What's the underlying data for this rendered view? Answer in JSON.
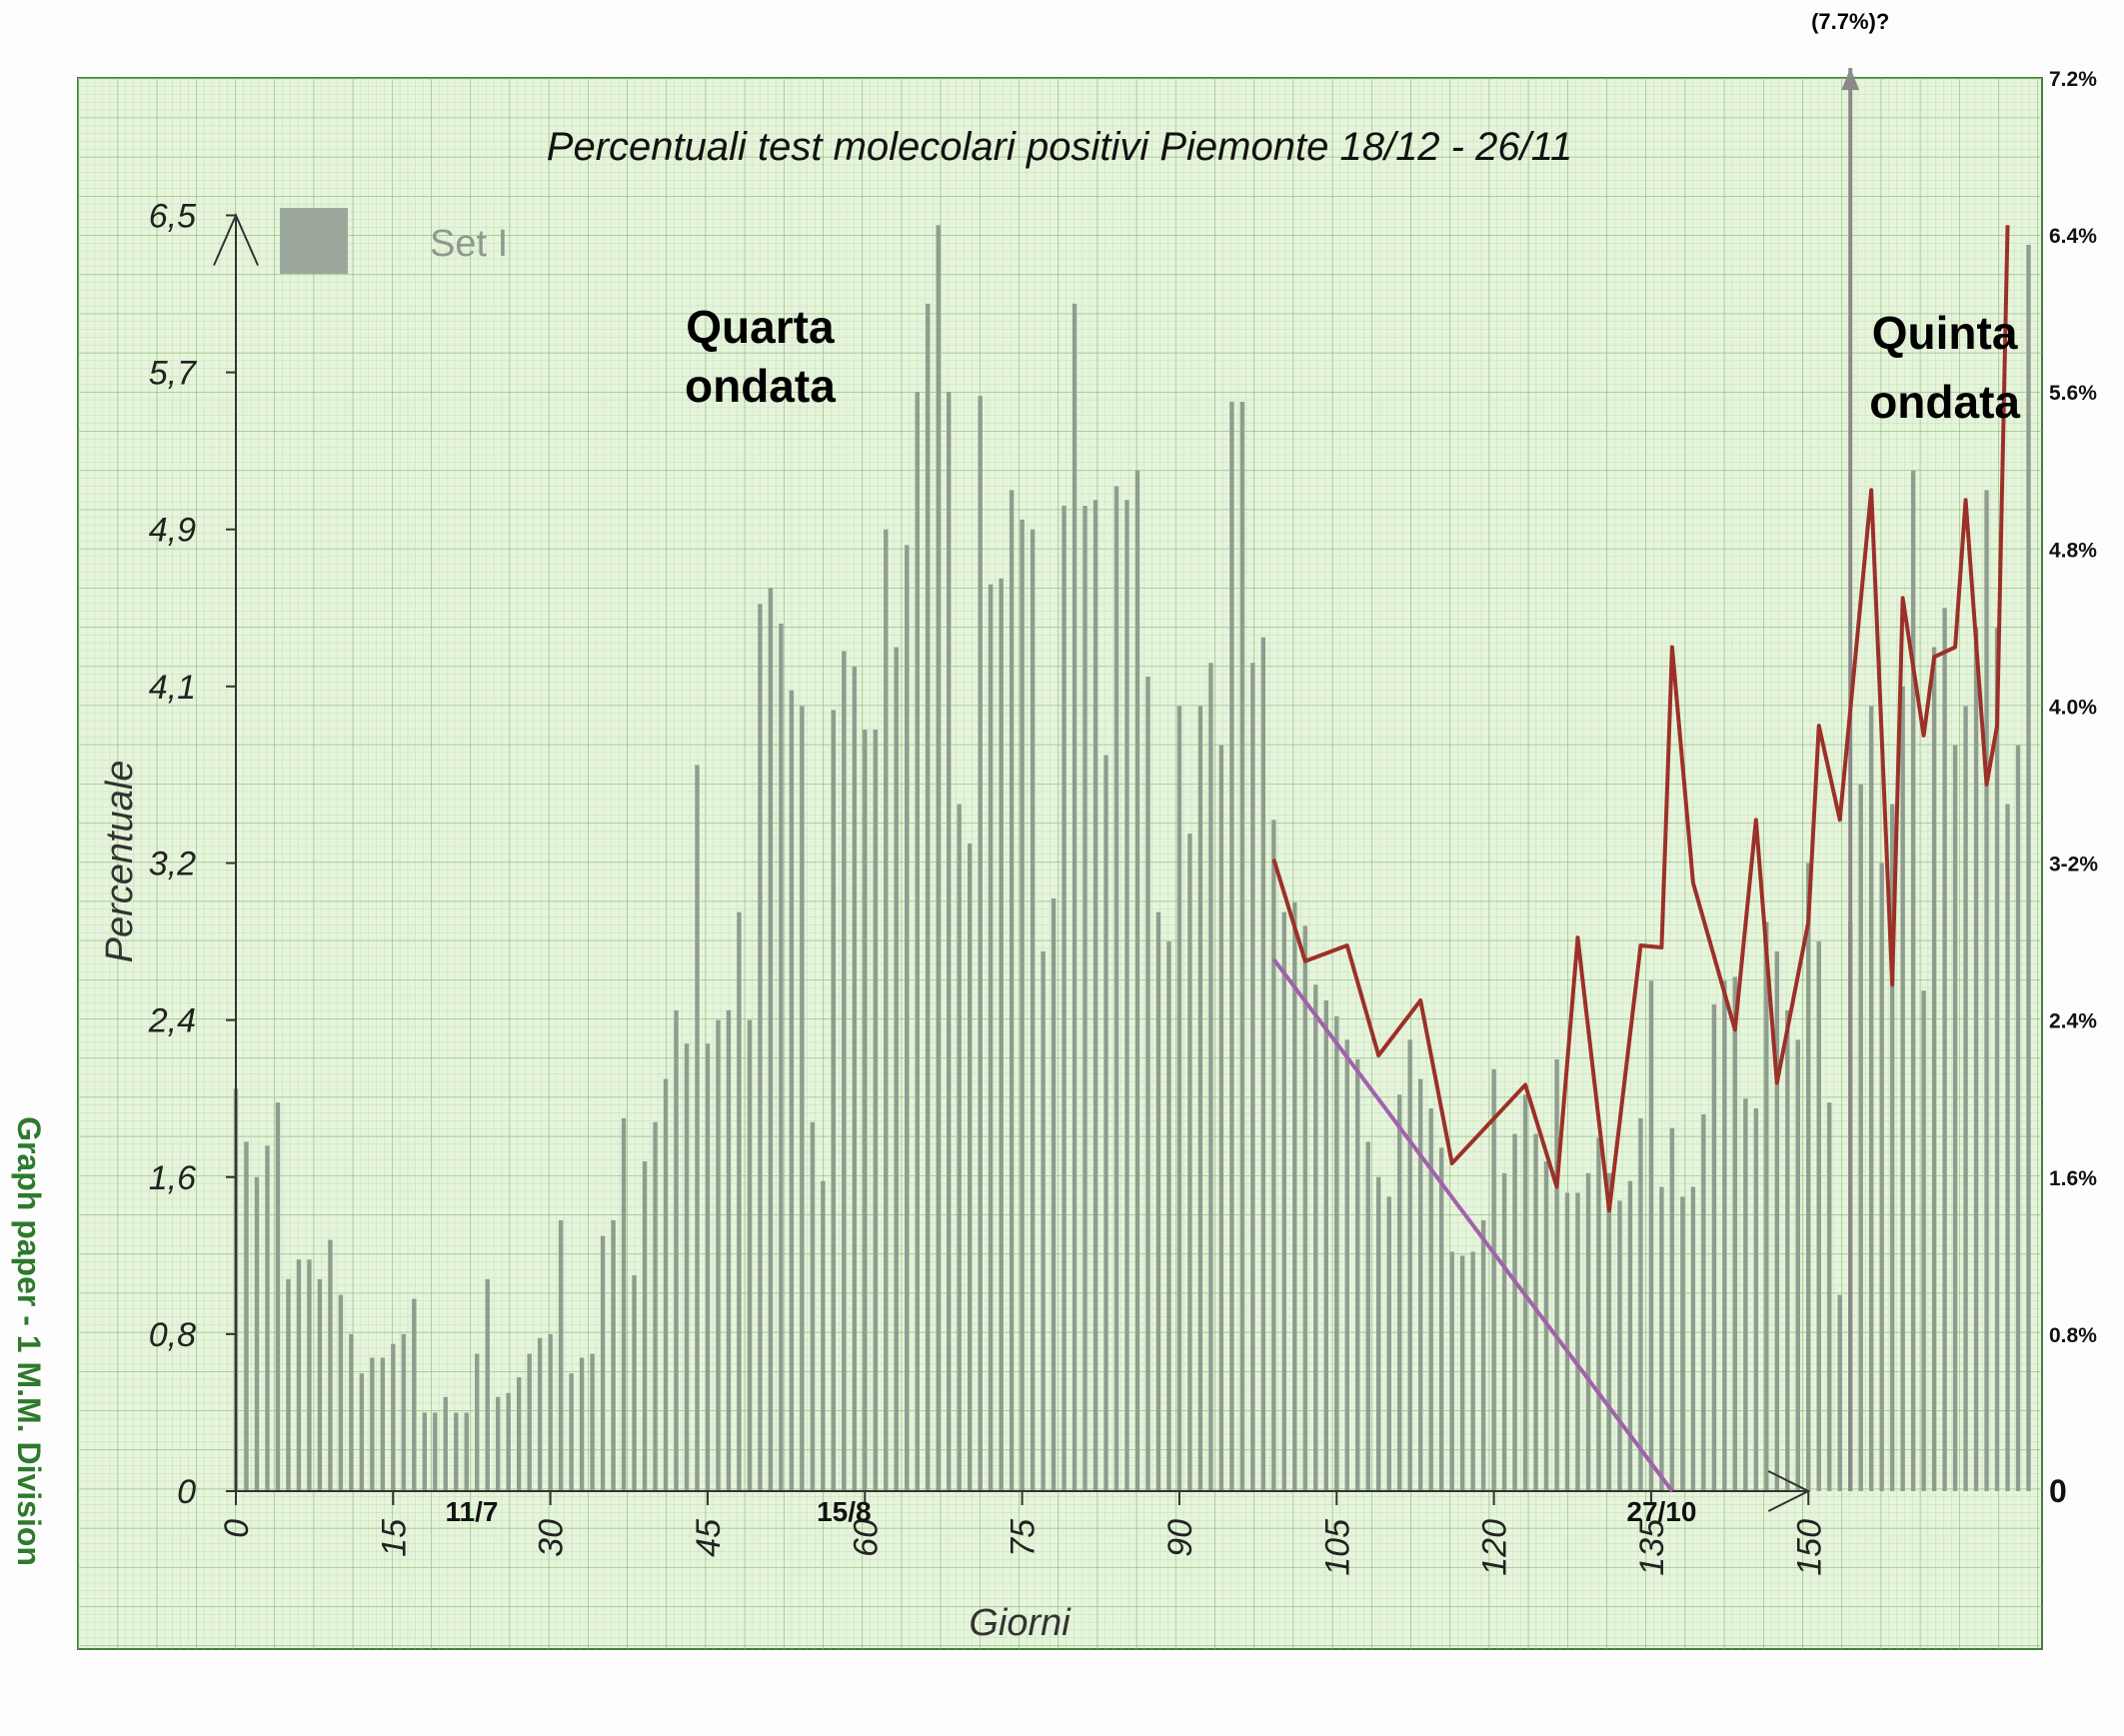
{
  "chart_data": {
    "type": "bar",
    "title": "Percentuali test molecolari positivi Piemonte 18/12 - 26/11",
    "xlabel": "Giorni",
    "ylabel": "Percentuale",
    "legend": {
      "label": "Set I",
      "position": "top-left"
    },
    "side_label": "Graph paper - 1 M.M. Division",
    "grid": true,
    "xlim": [
      0,
      172
    ],
    "ylim": [
      0,
      7.2
    ],
    "x_ticks": [
      0,
      15,
      30,
      45,
      60,
      75,
      90,
      105,
      120,
      135,
      150
    ],
    "x_tick_labels": [
      "0",
      "15",
      "30",
      "45",
      "60",
      "75",
      "90",
      "105",
      "120",
      "135",
      "150"
    ],
    "y_ticks": [
      0,
      0.8,
      1.6,
      2.4,
      3.2,
      4.1,
      4.9,
      5.7,
      6.5
    ],
    "y_tick_labels": [
      "0",
      "0,8",
      "1,6",
      "2,4",
      "3,2",
      "4,1",
      "4,9",
      "5,7",
      "6,5"
    ],
    "right_ticks": [
      0,
      0.8,
      1.6,
      2.4,
      3.2,
      4.0,
      4.8,
      5.6,
      6.4,
      7.2
    ],
    "right_tick_labels": [
      "0",
      "0.8%",
      "1.6%",
      "2.4%",
      "3-2%",
      "4.0%",
      "4.8%",
      "5.6%",
      "6.4%",
      "7.2%"
    ],
    "date_markers": [
      {
        "x": 22.5,
        "label": "11/7"
      },
      {
        "x": 58,
        "label": "15/8"
      },
      {
        "x": 136,
        "label": "27/10"
      }
    ],
    "annotations": [
      {
        "text": "Quarta",
        "x": 50,
        "y": 5.85
      },
      {
        "text": "ondata",
        "x": 50,
        "y": 5.55
      },
      {
        "text": "Quinta",
        "x": 163,
        "y": 5.82
      },
      {
        "text": "ondata",
        "x": 163,
        "y": 5.47
      },
      {
        "text": "(7.7%)?",
        "x": 154,
        "y": 7.45
      }
    ],
    "series": [
      {
        "values": [
          2.05,
          1.78,
          1.6,
          1.76,
          1.98,
          1.08,
          1.18,
          1.18,
          1.08,
          1.28,
          1.0,
          0.8,
          0.6,
          0.68,
          0.68,
          0.75,
          0.8,
          0.98,
          0.4,
          0.4,
          0.48,
          0.4,
          0.4,
          0.7,
          1.08,
          0.48,
          0.5,
          0.58,
          0.7,
          0.78,
          0.8,
          1.38,
          0.6,
          0.68,
          0.7,
          1.3,
          1.38,
          1.9,
          1.1,
          1.68,
          1.88,
          2.1,
          2.45,
          2.28,
          3.7,
          2.28,
          2.4,
          2.45,
          2.95,
          2.4,
          4.52,
          4.6,
          4.42,
          4.08,
          4.0,
          1.88,
          1.58,
          3.98,
          4.28,
          4.2,
          3.88,
          3.88,
          4.9,
          4.3,
          4.82,
          5.6,
          6.05,
          6.45,
          5.6,
          3.5,
          3.3,
          5.58,
          4.62,
          4.65,
          5.1,
          4.95,
          4.9,
          2.75,
          3.02,
          5.02,
          6.05,
          5.02,
          5.05,
          3.75,
          5.12,
          5.05,
          5.2,
          4.15,
          2.95,
          2.8,
          4.0,
          3.35,
          4.0,
          4.22,
          3.8,
          5.55,
          5.55,
          4.22,
          4.35,
          3.42,
          2.95,
          3.0,
          2.88,
          2.58,
          2.5,
          2.42,
          2.3,
          2.2,
          1.78,
          1.6,
          1.5,
          2.02,
          2.3,
          2.1,
          1.95,
          1.75,
          1.22,
          1.2,
          1.22,
          1.38,
          2.15,
          1.62,
          1.82,
          2.02,
          1.82,
          1.68,
          2.2,
          1.52,
          1.52,
          1.62,
          1.8,
          1.62,
          1.48,
          1.58,
          1.9,
          2.6,
          1.55,
          1.85,
          1.5,
          1.55,
          1.92,
          2.48,
          2.6,
          2.62,
          2.0,
          1.95,
          2.9,
          2.75,
          2.45,
          2.3,
          3.2,
          2.8,
          1.98,
          1.0,
          2.9,
          3.6,
          4.0,
          3.2,
          3.5,
          4.1,
          5.2,
          2.55,
          4.3,
          4.5,
          3.8,
          4.0,
          4.4,
          5.1,
          4.4,
          3.5,
          3.8,
          6.35
        ],
        "color": "#8f9d8f"
      }
    ],
    "overlay_lines": [
      {
        "color": "#9c3028",
        "points": [
          [
            99,
            3.22
          ],
          [
            102,
            2.7
          ],
          [
            106,
            2.78
          ],
          [
            109,
            2.22
          ],
          [
            113,
            2.5
          ],
          [
            116,
            1.67
          ],
          [
            123,
            2.07
          ],
          [
            126,
            1.55
          ],
          [
            128,
            2.82
          ],
          [
            131,
            1.43
          ],
          [
            134,
            2.78
          ],
          [
            136,
            2.77
          ],
          [
            137,
            4.3
          ],
          [
            139,
            3.1
          ],
          [
            143,
            2.35
          ],
          [
            145,
            3.42
          ],
          [
            147,
            2.08
          ],
          [
            150,
            2.9
          ],
          [
            151,
            3.9
          ],
          [
            153,
            3.42
          ],
          [
            156,
            5.1
          ],
          [
            158,
            2.58
          ],
          [
            159,
            4.55
          ],
          [
            161,
            3.85
          ],
          [
            162,
            4.25
          ],
          [
            164,
            4.3
          ],
          [
            165,
            5.05
          ],
          [
            167,
            3.6
          ],
          [
            168,
            3.9
          ],
          [
            169,
            6.45
          ]
        ]
      },
      {
        "color": "#a062ac",
        "points": [
          [
            99,
            2.71
          ],
          [
            137,
            0.0
          ]
        ]
      }
    ],
    "x_axis_arrow_x": 150,
    "vertical_marker": {
      "x": 154,
      "from": 0,
      "to": 7.25,
      "color": "#8a8a8a"
    }
  }
}
